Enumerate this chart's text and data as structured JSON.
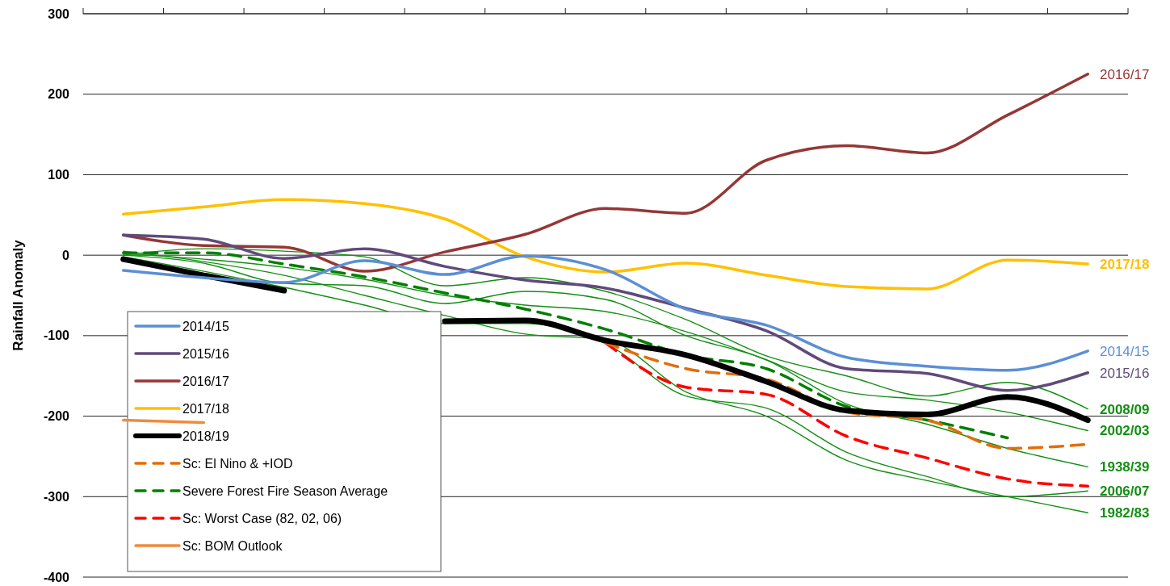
{
  "chart_data": {
    "type": "line",
    "ylabel": "Rainfall Anomaly",
    "categories": [
      null,
      null,
      null,
      null,
      null,
      null,
      null,
      null,
      null,
      null,
      null,
      null,
      null
    ],
    "ylim": [
      -400,
      300
    ],
    "yticks": [
      -400,
      -300,
      -200,
      -100,
      0,
      100,
      200,
      300
    ],
    "grid": "y",
    "legend": "bottom left",
    "series": [
      {
        "name": "2014/15",
        "color": "#5b8fd6",
        "values": [
          -19,
          -28,
          -34,
          -7,
          -24,
          -1,
          -18,
          -67,
          -87,
          -127,
          -138,
          -143,
          -119
        ]
      },
      {
        "name": "2015/16",
        "color": "#604a7b",
        "values": [
          25,
          20,
          -4,
          8,
          -14,
          -31,
          -41,
          -66,
          -94,
          -141,
          -147,
          -168,
          -146
        ]
      },
      {
        "name": "2016/17",
        "color": "#953735",
        "values": [
          25,
          12,
          10,
          -20,
          4,
          26,
          58,
          52,
          118,
          136,
          127,
          174,
          225
        ]
      },
      {
        "name": "2017/18",
        "color": "#ffc000",
        "values": [
          51,
          60,
          69,
          64,
          45,
          -2,
          -21,
          -10,
          -25,
          -39,
          -42,
          -6,
          -11
        ]
      },
      {
        "name": "2018/19",
        "color": "#000000",
        "values": [
          -5,
          -25,
          -44,
          null,
          -82,
          -81,
          -106,
          -124,
          -157,
          -193,
          -198,
          -176,
          -205
        ]
      },
      {
        "name": "Sc: El Nino & +IOD",
        "color": "#e46c0a",
        "line_style": "dashed",
        "values": [
          null,
          null,
          null,
          null,
          null,
          null,
          -109,
          -141,
          -154,
          -195,
          -205,
          -240,
          -235
        ]
      },
      {
        "name": "Severe Forest Fire Season Average",
        "color": "#008000",
        "line_style": "dashed",
        "values": [
          3,
          3,
          -11,
          -27,
          -47,
          -67,
          -92,
          -124,
          -141,
          -188,
          -205,
          -227,
          null
        ]
      },
      {
        "name": "Sc: Worst Case (82, 02, 06)",
        "color": "#ff0000",
        "line_style": "dashed",
        "values": [
          null,
          null,
          null,
          null,
          null,
          null,
          -109,
          -164,
          -173,
          -225,
          -252,
          -278,
          -287
        ]
      },
      {
        "name": "Sc: BOM Outlook",
        "color": "#f08c3c",
        "values": [
          -205,
          -208,
          null,
          null,
          null,
          null,
          null,
          null,
          null,
          null,
          null,
          null,
          null
        ]
      },
      {
        "name": "2008/09",
        "color": "#138f13",
        "values": [
          0,
          8,
          5,
          -2,
          -38,
          -28,
          -45,
          -80,
          -125,
          -150,
          -175,
          -158,
          -191
        ]
      },
      {
        "name": "2002/03",
        "color": "#138f13",
        "values": [
          2,
          -5,
          -15,
          -30,
          -50,
          -62,
          -70,
          -95,
          -130,
          -170,
          -180,
          -195,
          -218
        ]
      },
      {
        "name": "1938/39",
        "color": "#138f13",
        "values": [
          0,
          -10,
          -35,
          -38,
          -60,
          -45,
          -55,
          -100,
          -130,
          -185,
          -210,
          -240,
          -263
        ]
      },
      {
        "name": "2006/07",
        "color": "#138f13",
        "values": [
          -2,
          -20,
          -40,
          -62,
          -85,
          -85,
          -110,
          -175,
          -190,
          -245,
          -275,
          -300,
          -293
        ]
      },
      {
        "name": "1982/83",
        "color": "#138f13",
        "values": [
          5,
          -8,
          -25,
          -50,
          -75,
          -98,
          -105,
          -170,
          -200,
          -255,
          -280,
          -300,
          -320
        ]
      }
    ]
  }
}
